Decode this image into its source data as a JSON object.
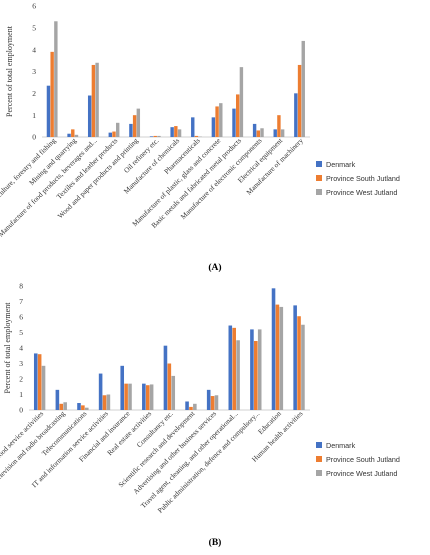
{
  "chart_data": [
    {
      "type": "bar",
      "panel_label": "(A)",
      "title": "",
      "xlabel": "",
      "ylabel": "Percent of total employment",
      "ylim": [
        0,
        6
      ],
      "yticks": [
        0,
        1,
        2,
        3,
        4,
        5,
        6
      ],
      "grid": false,
      "legend_position": "right",
      "categories": [
        "Agriculture, forestry and fishing",
        "Mining and quarrying",
        "Manufacture of food products, beverages and...",
        "Textiles and leather products",
        "Wood and paper products and printing",
        "Oil refinery etc.",
        "Manufacture of chemicals",
        "Pharmaceuticals",
        "Manufacture of plastic, glass and concrete",
        "Basic metals and fabricated metal products",
        "Manufacture of electronic components",
        "Electrical equipment",
        "Manufacture of machinery"
      ],
      "series": [
        {
          "name": "Denmark",
          "color": "#4472c4",
          "values": [
            2.35,
            0.15,
            1.9,
            0.2,
            0.6,
            0.03,
            0.45,
            0.9,
            0.9,
            1.3,
            0.6,
            0.35,
            2.0
          ]
        },
        {
          "name": "Province South Jutland",
          "color": "#ed7d31",
          "values": [
            3.9,
            0.35,
            3.3,
            0.25,
            1.0,
            0.05,
            0.5,
            0.05,
            1.4,
            1.95,
            0.3,
            1.0,
            3.3
          ]
        },
        {
          "name": "Province West Jutland",
          "color": "#a5a5a5",
          "values": [
            5.3,
            0.1,
            3.4,
            0.65,
            1.3,
            0.05,
            0.35,
            0.02,
            1.55,
            3.2,
            0.4,
            0.35,
            4.4
          ]
        }
      ]
    },
    {
      "type": "bar",
      "panel_label": "(B)",
      "title": "",
      "xlabel": "",
      "ylabel": "Percent of total employment",
      "ylim": [
        0,
        8
      ],
      "yticks": [
        0,
        1,
        2,
        3,
        4,
        5,
        6,
        7,
        8
      ],
      "grid": false,
      "legend_position": "right",
      "categories": [
        "Accommodation and food service activities",
        "Publishing, television and radio broadcasting",
        "Telecommunications",
        "IT and information service activities",
        "Financial and insurance",
        "Real estate activities",
        "Consultancy etc.",
        "Scientific research and development",
        "Advertising and other business services",
        "Travel agent, cleaning, and other operational...",
        "Public administration, defence and compulsory...",
        "Education",
        "Human health activities"
      ],
      "series": [
        {
          "name": "Denmark",
          "color": "#4472c4",
          "values": [
            3.65,
            1.3,
            0.45,
            2.35,
            2.85,
            1.7,
            4.15,
            0.55,
            1.3,
            5.45,
            5.2,
            7.85,
            6.75
          ]
        },
        {
          "name": "Province South Jutland",
          "color": "#ed7d31",
          "values": [
            3.6,
            0.4,
            0.3,
            0.95,
            1.7,
            1.6,
            3.0,
            0.2,
            0.9,
            5.3,
            4.45,
            6.8,
            6.05
          ]
        },
        {
          "name": "Province West Jutland",
          "color": "#a5a5a5",
          "values": [
            2.85,
            0.5,
            0.15,
            1.0,
            1.7,
            1.65,
            2.2,
            0.4,
            0.95,
            4.5,
            5.2,
            6.65,
            5.5
          ]
        }
      ]
    }
  ]
}
